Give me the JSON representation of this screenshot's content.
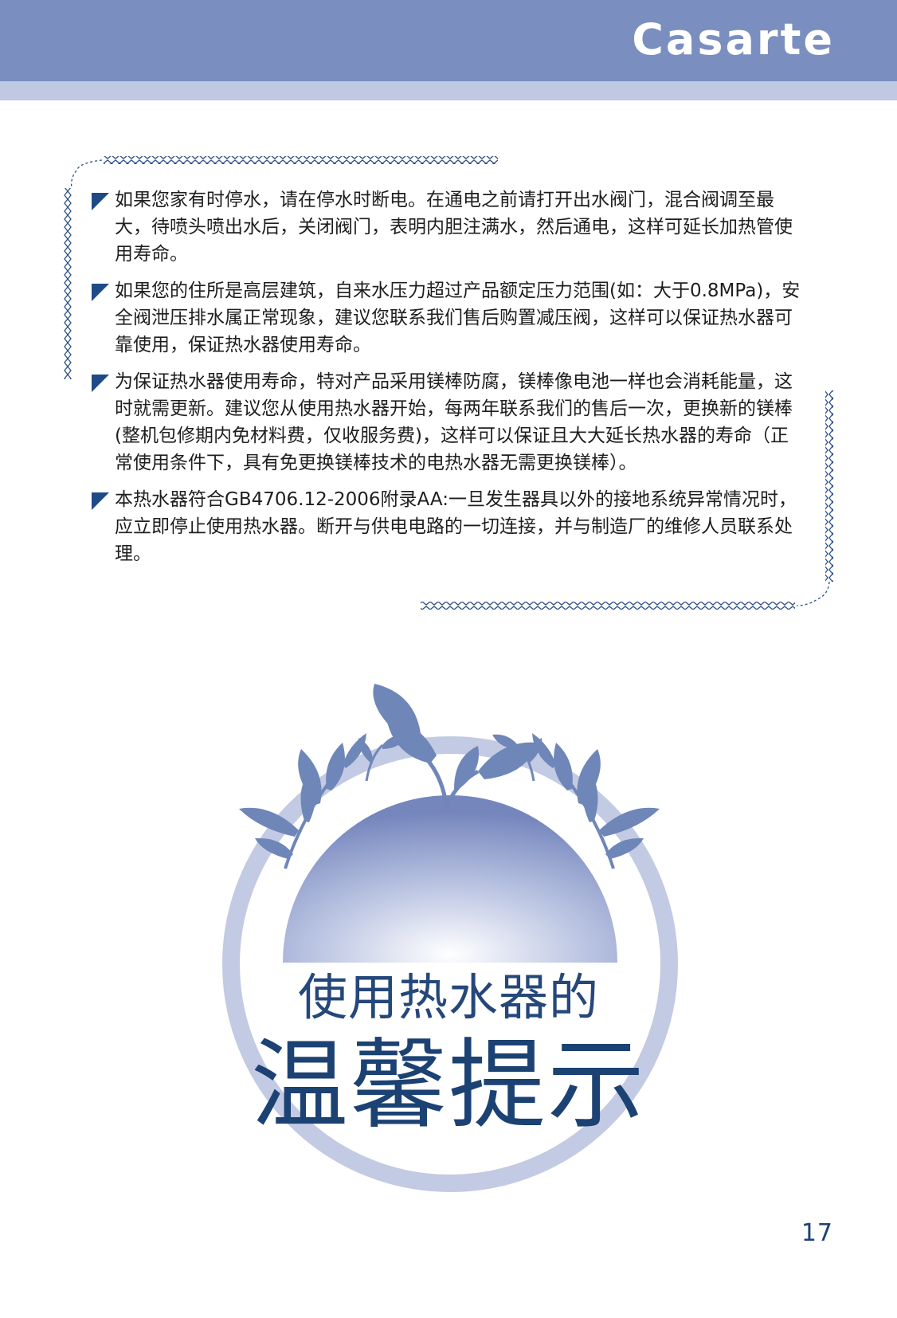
{
  "header": {
    "brand": "Casarte",
    "band_color": "#7a8fbf",
    "strip_color": "#c0c9e2"
  },
  "notes": [
    "如果您家有时停水，请在停水时断电。在通电之前请打开出水阀门，混合阀调至最大，待喷头喷出水后，关闭阀门，表明内胆注满水，然后通电，这样可延长加热管使用寿命。",
    "如果您的住所是高层建筑，自来水压力超过产品额定压力范围(如：大于0.8MPa)，安全阀泄压排水属正常现象，建议您联系我们售后购置减压阀，这样可以保证热水器可靠使用，保证热水器使用寿命。",
    "为保证热水器使用寿命，特对产品采用镁棒防腐，镁棒像电池一样也会消耗能量，这时就需更新。建议您从使用热水器开始，每两年联系我们的售后一次，更换新的镁棒(整机包修期内免材料费，仅收服务费)，这样可以保证且大大延长热水器的寿命（正常使用条件下，具有免更换镁棒技术的电热水器无需更换镁棒）。",
    "本热水器符合GB4706.12-2006附录AA:一旦发生器具以外的接地系统异常情况时，应立即停止使用热水器。断开与供电电路的一切连接，并与制造厂的维修人员联系处理。"
  ],
  "title": {
    "line1": "使用热水器的",
    "line2": "温馨提示"
  },
  "page_number": "17",
  "colors": {
    "accent": "#1b4273",
    "ring": "#c3cae3",
    "leaf": "#6f86b8"
  }
}
